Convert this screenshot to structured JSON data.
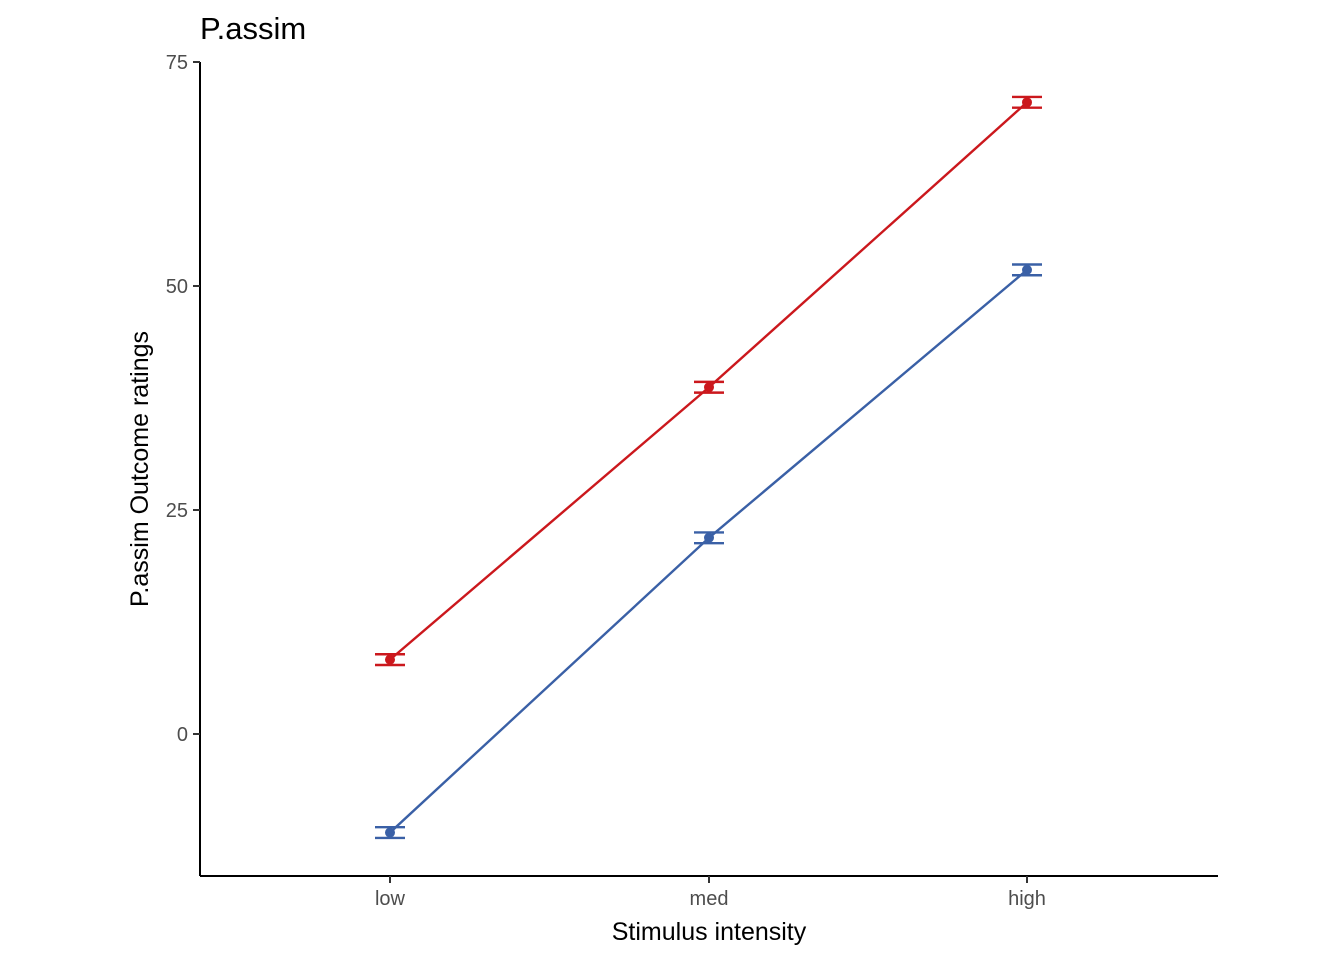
{
  "chart_data": {
    "type": "line",
    "title": "P.assim",
    "xlabel": "Stimulus intensity",
    "ylabel": "P.assim Outcome ratings",
    "categories": [
      "low",
      "med",
      "high"
    ],
    "y_ticks": [
      0,
      25,
      50,
      75
    ],
    "ylim": [
      -15.5,
      75
    ],
    "grid": false,
    "legend": "none",
    "series": [
      {
        "color": "#CB181D",
        "values": [
          8.3,
          38.7,
          70.5
        ],
        "error": [
          0.6,
          0.6,
          0.6
        ]
      },
      {
        "color": "#3A60A6",
        "values": [
          -11.0,
          21.9,
          51.8
        ],
        "error": [
          0.6,
          0.6,
          0.6
        ]
      }
    ]
  }
}
